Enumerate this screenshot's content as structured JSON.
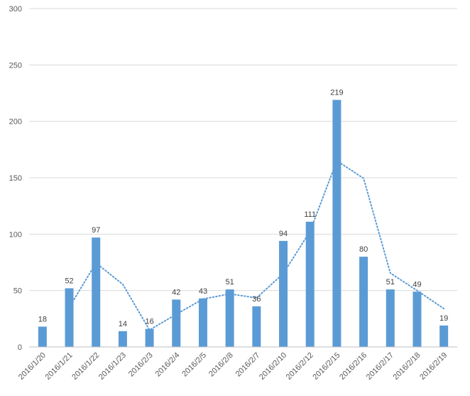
{
  "chart_data": {
    "type": "bar",
    "categories": [
      "2016/1/20",
      "2016/1/21",
      "2016/1/22",
      "2016/1/23",
      "2016/2/3",
      "2016/2/4",
      "2016/2/5",
      "2016/2/8",
      "2016/2/7",
      "2016/2/10",
      "2016/2/12",
      "2016/2/15",
      "2016/2/16",
      "2016/2/17",
      "2016/2/18",
      "2016/2/19"
    ],
    "series": [
      {
        "values": [
          18,
          52,
          97,
          14,
          16,
          42,
          43,
          51,
          36,
          94,
          111,
          219,
          80,
          51,
          49,
          19
        ],
        "color": "#5B9BD5"
      }
    ],
    "trendline": {
      "type": "moving-average",
      "period": 2,
      "style": "dotted",
      "color": "#5B9BD5"
    },
    "data_labels": true,
    "ylim": [
      0,
      300
    ],
    "yticks": [
      0,
      50,
      100,
      150,
      200,
      250,
      300
    ],
    "grid": true,
    "legend": "none",
    "title": "",
    "xlabel": "",
    "ylabel": ""
  }
}
